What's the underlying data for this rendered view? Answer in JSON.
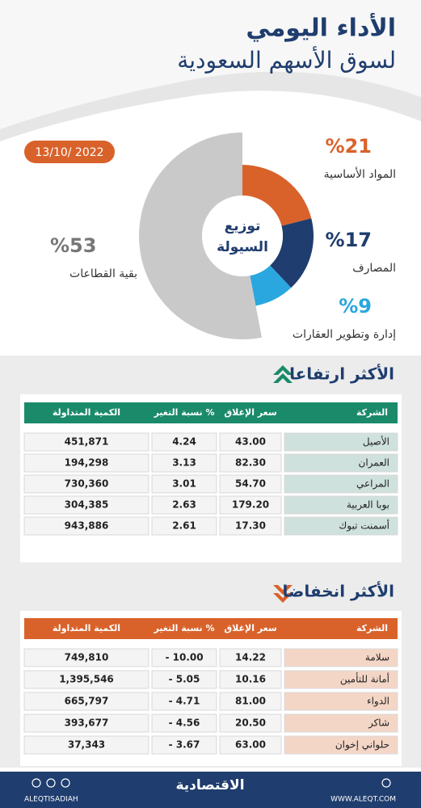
{
  "header": {
    "title": "الأداء اليومي",
    "subtitle": "لسوق الأسهم السعودية",
    "date": "13/10/ 2022"
  },
  "chart_data": {
    "type": "donut",
    "title": [
      "توزيع",
      "السيولة"
    ],
    "categories": [
      "المواد الأساسية",
      "المصارف",
      "إدارة وتطوير العقارات",
      "بقية القطاعات"
    ],
    "values": [
      21,
      17,
      9,
      53
    ],
    "value_labels": [
      "%21",
      "%17",
      "%9",
      "%53"
    ],
    "colors": [
      "#d9622b",
      "#1f3d6e",
      "#2aa7df",
      "#c9c9c9"
    ]
  },
  "gainers": {
    "title": "الأكثر ارتفاعا",
    "columns": [
      "الشركة",
      "سعر الإغلاق",
      "نسبة التغير %",
      "الكمية المتداولة"
    ],
    "rows": [
      [
        "الأصيل",
        "43.00",
        "4.24",
        "451,871"
      ],
      [
        "العمران",
        "82.30",
        "3.13",
        "194,298"
      ],
      [
        "المراعي",
        "54.70",
        "3.01",
        "730,360"
      ],
      [
        "بوبا العربية",
        "179.20",
        "2.63",
        "304,385"
      ],
      [
        "أسمنت تبوك",
        "17.30",
        "2.61",
        "943,886"
      ]
    ]
  },
  "losers": {
    "title": "الأكثر انخفاضا",
    "columns": [
      "الشركة",
      "سعر الإغلاق",
      "نسبة التغير %",
      "الكمية المتداولة"
    ],
    "rows": [
      [
        "سلامة",
        "14.22",
        "- 10.00",
        "749,810"
      ],
      [
        "أمانة للتأمين",
        "10.16",
        "- 5.05",
        "1,395,546"
      ],
      [
        "الدواء",
        "81.00",
        "- 4.71",
        "665,797"
      ],
      [
        "شاكر",
        "20.50",
        "- 4.56",
        "393,677"
      ],
      [
        "حلواني إخوان",
        "63.00",
        "- 3.67",
        "37,343"
      ]
    ]
  },
  "footer": {
    "brand": "الاقتصادية",
    "website": "WWW.ALEQT.COM",
    "social": "ALEQTISADIAH"
  }
}
